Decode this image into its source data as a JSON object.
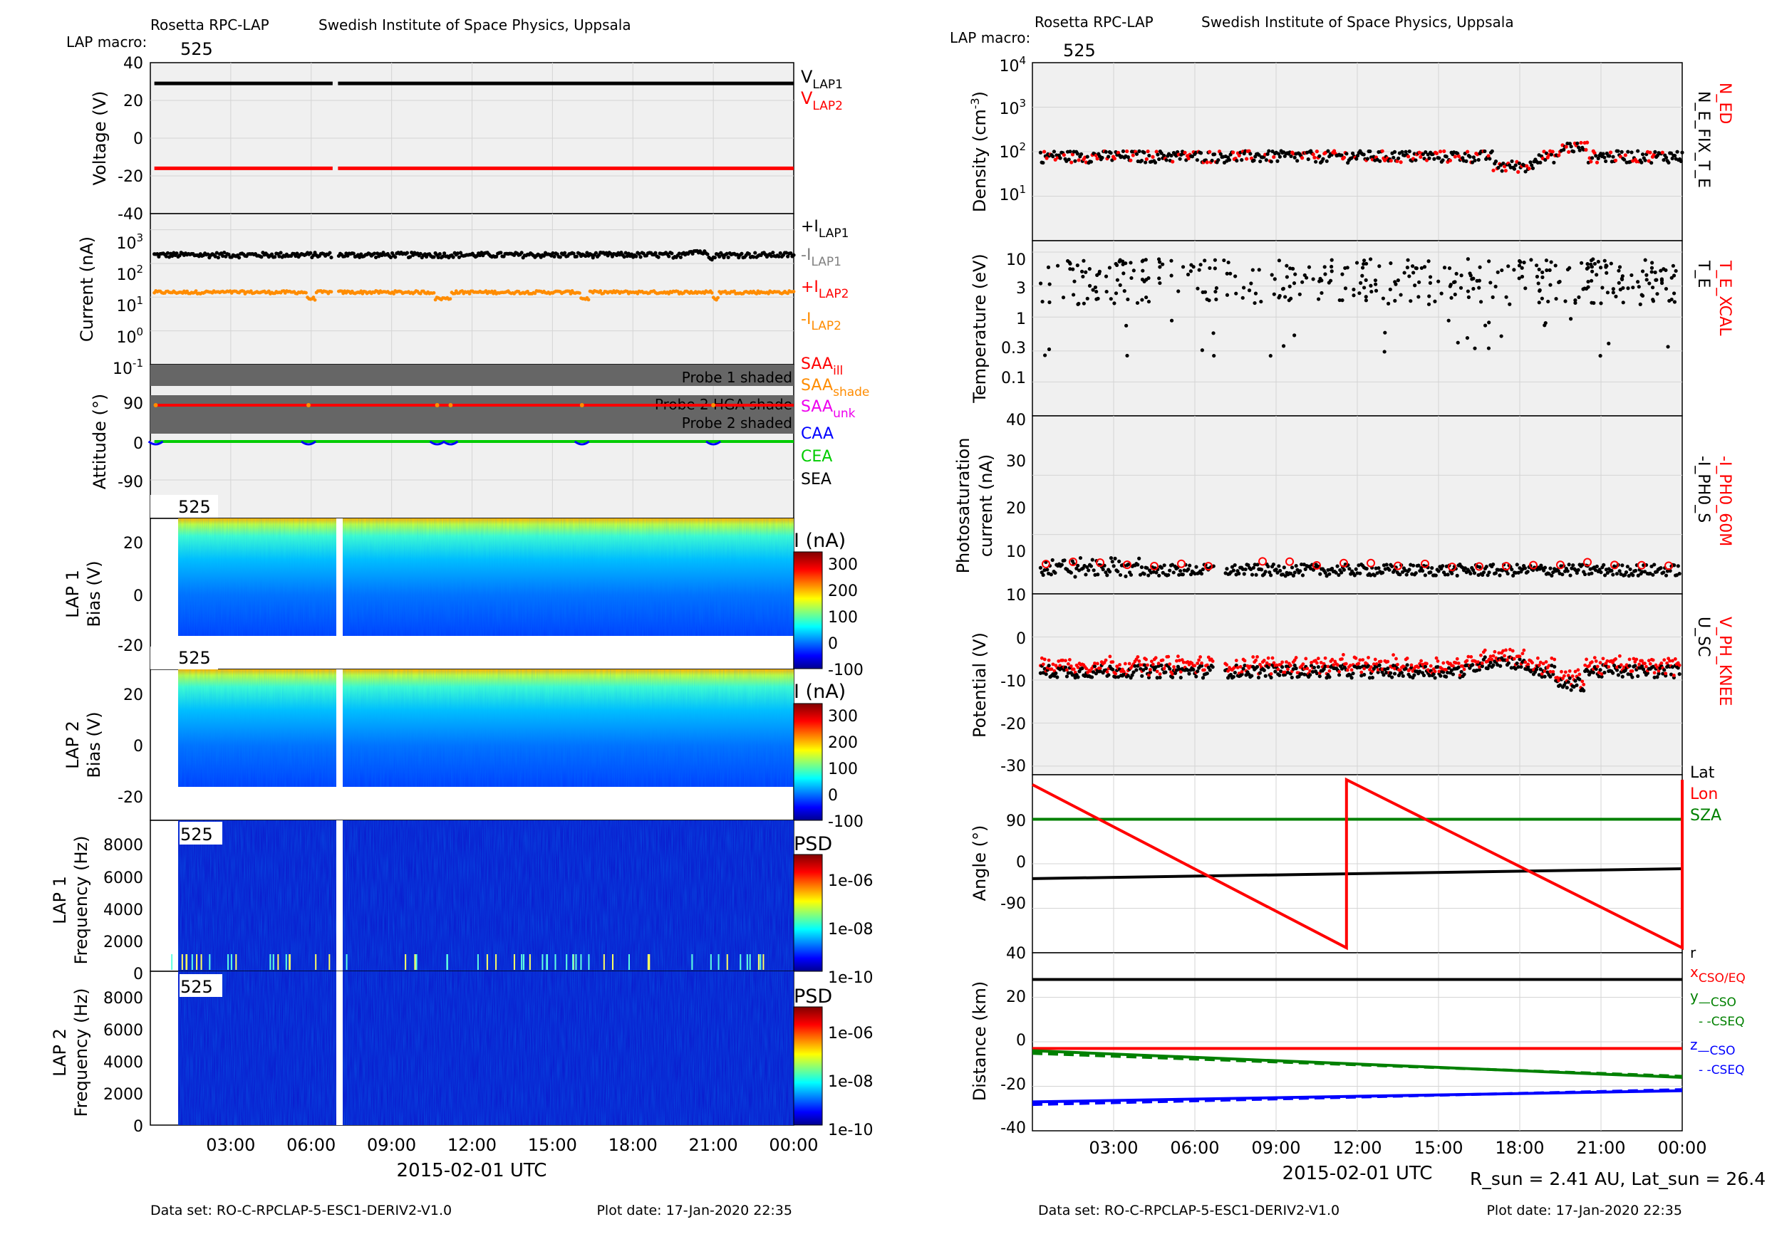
{
  "left": {
    "header": {
      "instrument": "Rosetta RPC-LAP",
      "institute": "Swedish Institute of Space Physics, Uppsala",
      "macro_label": "LAP macro:",
      "macro_value": "525"
    },
    "xlabel": "2015-02-01 UTC",
    "xticks": [
      "03:00",
      "06:00",
      "09:00",
      "12:00",
      "15:00",
      "18:00",
      "21:00",
      "00:00"
    ],
    "footer": {
      "dataset": "Data set: RO-C-RPCLAP-5-ESC1-DERIV2-V1.0",
      "plotdate": "Plot date: 17-Jan-2020 22:35"
    }
  },
  "right": {
    "header": {
      "instrument": "Rosetta RPC-LAP",
      "institute": "Swedish Institute of Space Physics, Uppsala",
      "macro_label": "LAP macro:",
      "macro_value": "525"
    },
    "xlabel": "2015-02-01 UTC",
    "xticks": [
      "03:00",
      "06:00",
      "09:00",
      "12:00",
      "15:00",
      "18:00",
      "21:00",
      "00:00"
    ],
    "sun_info": "R_sun = 2.41 AU, Lat_sun = 26.4°",
    "footer": {
      "dataset": "Data set: RO-C-RPCLAP-5-ESC1-DERIV2-V1.0",
      "plotdate": "Plot date: 17-Jan-2020 22:35"
    }
  },
  "colors": {
    "panel_bg": "#f0f0f0",
    "grid": "#d4d4d4",
    "black": "#000000",
    "red": "#ff0000",
    "orange": "#ff8c00",
    "gray": "#808080",
    "magenta": "#ee00ee",
    "blue": "#0000ff",
    "green": "#00cc00",
    "darkgreen": "#008000",
    "shade": "#666666"
  },
  "chart_data": [
    {
      "id": "voltage",
      "type": "line",
      "ylabel": "Voltage (V)",
      "yticks": [
        "40",
        "20",
        "0",
        "-20",
        "-40"
      ],
      "ylim": [
        -40,
        40
      ],
      "series": [
        {
          "name": "V_LAP1",
          "label_main": "V",
          "label_sub": "LAP1",
          "color": "#000000",
          "value": 29
        },
        {
          "name": "V_LAP2",
          "label_main": "V",
          "label_sub": "LAP2",
          "color": "#ff0000",
          "value": -16
        }
      ],
      "data_gap_hours": [
        6.8,
        7.0
      ]
    },
    {
      "id": "current",
      "type": "scatter",
      "ylabel": "Current (nA)",
      "yscale": "log",
      "yticks": [
        "10^3",
        "10^2",
        "10^1",
        "10^0",
        "10^-1"
      ],
      "ylim": [
        0.1,
        3000
      ],
      "series": [
        {
          "name": "+I_LAP1",
          "label_main": "+I",
          "label_sub": "LAP1",
          "color": "#000000",
          "typical": 180
        },
        {
          "name": "-I_LAP1",
          "label_main": "-I",
          "label_sub": "LAP1",
          "color": "#808080"
        },
        {
          "name": "+I_LAP2",
          "label_main": "+I",
          "label_sub": "LAP2",
          "color": "#ff0000"
        },
        {
          "name": "-I_LAP2",
          "label_main": "-I",
          "label_sub": "LAP2",
          "color": "#ff8c00",
          "typical": 14
        }
      ]
    },
    {
      "id": "attitude",
      "type": "line",
      "ylabel": "Attitude (°)",
      "yticks": [
        "90",
        "0",
        "-90"
      ],
      "ylim": [
        -180,
        180
      ],
      "bands": [
        "Probe 1 shaded",
        "Probe 2 HGA shade",
        "Probe 2 shaded"
      ],
      "series": [
        {
          "name": "SAA_ill",
          "label_main": "SAA",
          "label_sub": "ill",
          "color": "#ff0000",
          "value": 90
        },
        {
          "name": "SAA_shade",
          "label_main": "SAA",
          "label_sub": "shade",
          "color": "#ff8c00"
        },
        {
          "name": "SAA_unk",
          "label_main": "SAA",
          "label_sub": "unk",
          "color": "#ee00ee"
        },
        {
          "name": "CAA",
          "label_main": "CAA",
          "label_sub": "",
          "color": "#0000ff",
          "value": 0
        },
        {
          "name": "CEA",
          "label_main": "CEA",
          "label_sub": "",
          "color": "#00cc00",
          "value": 0
        },
        {
          "name": "SEA",
          "label_main": "SEA",
          "label_sub": "",
          "color": "#000000"
        }
      ]
    },
    {
      "id": "lap1_sweep",
      "type": "heatmap",
      "panel_label": "525",
      "ylabel_lines": [
        "LAP 1",
        "Bias (V)"
      ],
      "yticks": [
        "20",
        "0",
        "-20"
      ],
      "ylim": [
        -25,
        30
      ],
      "colorbar_title": "I (nA)",
      "colorbar_ticks": [
        "300",
        "200",
        "100",
        "0",
        "-100"
      ],
      "clim": [
        -100,
        350
      ]
    },
    {
      "id": "lap2_sweep",
      "type": "heatmap",
      "panel_label": "525",
      "ylabel_lines": [
        "LAP 2",
        "Bias (V)"
      ],
      "yticks": [
        "20",
        "0",
        "-20"
      ],
      "ylim": [
        -25,
        30
      ],
      "colorbar_title": "I (nA)",
      "colorbar_ticks": [
        "300",
        "200",
        "100",
        "0",
        "-100"
      ],
      "clim": [
        -100,
        350
      ]
    },
    {
      "id": "lap1_spec",
      "type": "heatmap",
      "panel_label": "525",
      "ylabel_lines": [
        "LAP 1",
        "Frequency (Hz)"
      ],
      "yticks": [
        "8000",
        "6000",
        "4000",
        "2000",
        "0"
      ],
      "ylim": [
        0,
        9500
      ],
      "colorbar_title": "PSD",
      "colorbar_ticks": [
        "1e-06",
        "1e-08",
        "1e-10"
      ]
    },
    {
      "id": "lap2_spec",
      "type": "heatmap",
      "panel_label": "525",
      "ylabel_lines": [
        "LAP 2",
        "Frequency (Hz)"
      ],
      "yticks": [
        "8000",
        "6000",
        "4000",
        "2000",
        "0"
      ],
      "ylim": [
        0,
        9500
      ],
      "colorbar_title": "PSD",
      "colorbar_ticks": [
        "1e-06",
        "1e-08",
        "1e-10"
      ]
    },
    {
      "id": "density",
      "type": "scatter",
      "ylabel": "Density (cm^-3)",
      "yscale": "log",
      "yticks": [
        "10^4",
        "10^3",
        "10^2",
        "10^1"
      ],
      "ylim": [
        1,
        10000
      ],
      "side_labels": [
        {
          "text": "N_ED",
          "color": "#ff0000"
        },
        {
          "text": "N_E_FIX_T_E",
          "color": "#000000"
        }
      ],
      "typical": 80
    },
    {
      "id": "temperature",
      "type": "scatter",
      "ylabel": "Temperature (eV)",
      "yscale": "log",
      "yticks": [
        "10",
        "3",
        "1",
        "0.3",
        "0.1"
      ],
      "ylim": [
        0.03,
        15
      ],
      "side_labels": [
        {
          "text": "T_E_XCAL",
          "color": "#ff0000"
        },
        {
          "text": "T_E",
          "color": "#000000"
        }
      ],
      "typical": 3
    },
    {
      "id": "photo",
      "type": "scatter",
      "ylabel_lines": [
        "Photosaturation",
        "current (nA)"
      ],
      "yticks": [
        "40",
        "30",
        "20",
        "10"
      ],
      "ylim": [
        10,
        40
      ],
      "side_labels": [
        {
          "text": "-I_PH0_60M",
          "color": "#ff0000"
        },
        {
          "text": "-I_PH0_S",
          "color": "#000000"
        }
      ],
      "typical": 14
    },
    {
      "id": "potential",
      "type": "scatter",
      "ylabel": "Potential (V)",
      "yticks": [
        "10",
        "0",
        "-10",
        "-20",
        "-30"
      ],
      "ylim": [
        -32,
        10
      ],
      "side_labels": [
        {
          "text": "V_PH_KNEE",
          "color": "#ff0000"
        },
        {
          "text": "U_SC",
          "color": "#000000"
        }
      ],
      "typical": -8
    },
    {
      "id": "angle",
      "type": "line",
      "ylabel": "Angle (°)",
      "yticks": [
        "90",
        "0",
        "-90"
      ],
      "ylim": [
        -180,
        180
      ],
      "series": [
        {
          "name": "Lat",
          "color": "#000000",
          "start": -30,
          "end": -10
        },
        {
          "name": "Lon",
          "color": "#ff0000",
          "segments": [
            [
              0,
              160,
              11.6,
              -170
            ],
            [
              11.6,
              170,
              24,
              -170
            ]
          ]
        },
        {
          "name": "SZA",
          "color": "#008000",
          "start": 90,
          "end": 90
        }
      ]
    },
    {
      "id": "distance",
      "type": "line",
      "ylabel": "Distance (km)",
      "yticks": [
        "40",
        "20",
        "0",
        "-20",
        "-40"
      ],
      "ylim": [
        -40,
        40
      ],
      "series": [
        {
          "name": "r",
          "color": "#000000",
          "start": 28,
          "end": 28
        },
        {
          "name": "x",
          "sub": "CSO/EQ",
          "color": "#ff0000",
          "start": -3,
          "end": -3
        },
        {
          "name": "y",
          "sub": "CSO",
          "sub2": "CSEQ",
          "color": "#008000",
          "start": -4,
          "end": -16
        },
        {
          "name": "z",
          "sub": "CSO",
          "sub2": "CSEQ",
          "color": "#0000ff",
          "start": -27,
          "end": -22
        }
      ]
    }
  ]
}
